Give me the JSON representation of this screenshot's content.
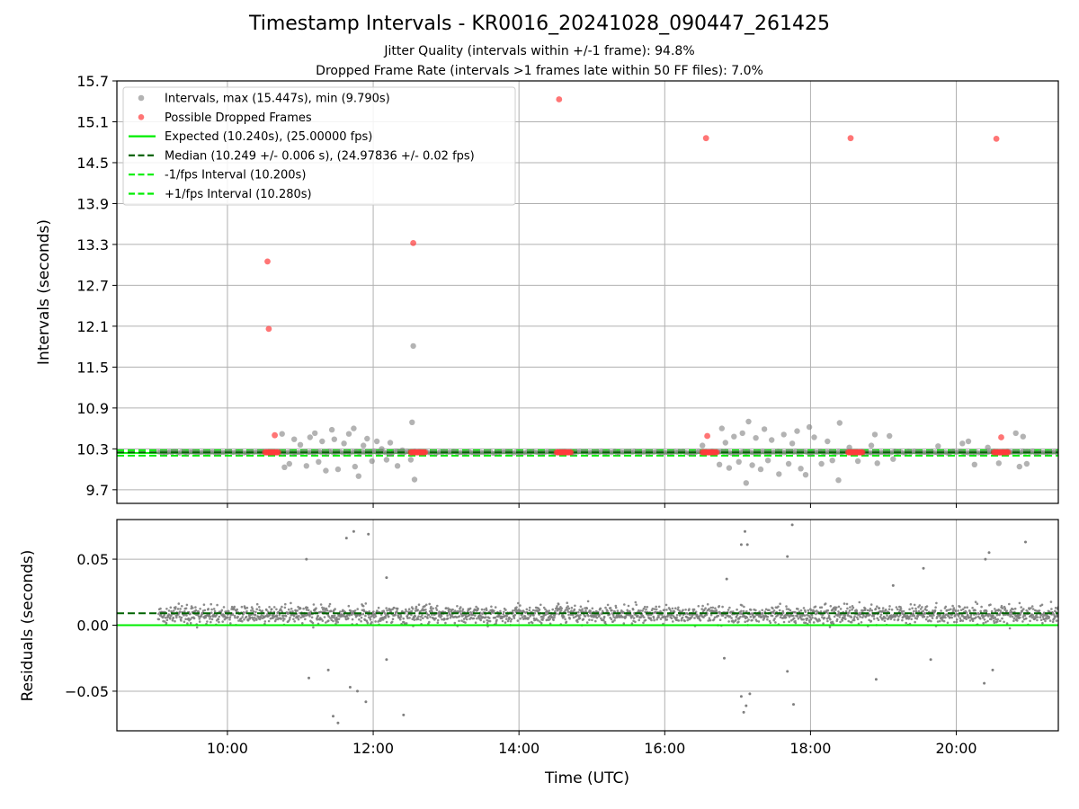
{
  "title": "Timestamp Intervals - KR0016_20241028_090447_261425",
  "subtitles": [
    "Jitter Quality (intervals within +/-1 frame): 94.8%",
    "Dropped Frame Rate (intervals >1 frames late within 50 FF files): 7.0%"
  ],
  "colors": {
    "interval_points": "#808080",
    "dropped_points": "#ff3b3b",
    "expected_line": "#00ee00",
    "median_line": "#006400",
    "grid": "#b0b0b0"
  },
  "chart_data": [
    {
      "type": "scatter",
      "xlabel": "",
      "ylabel": "Intervals (seconds)",
      "xlim": [
        "08:29",
        "21:24"
      ],
      "ylim": [
        9.5,
        15.7
      ],
      "yticks": [
        "9.7",
        "10.3",
        "10.9",
        "11.5",
        "12.1",
        "12.7",
        "13.3",
        "13.9",
        "14.5",
        "15.1",
        "15.7"
      ],
      "grid": true,
      "legend_position": "top-left",
      "legend": [
        "Intervals, max (15.447s), min (9.790s)",
        "Possible Dropped Frames",
        "Expected (10.240s), (25.00000 fps)",
        "Median (10.249 +/- 0.006 s), (24.97836 +/- 0.02 fps)",
        "-1/fps Interval (10.200s)",
        "+1/fps Interval (10.280s)"
      ],
      "reference_lines": {
        "expected": 10.24,
        "median": 10.249,
        "minus_one_fps": 10.2,
        "plus_one_fps": 10.28
      },
      "interval_series": {
        "name": "Intervals, max (15.447s), min (9.790s)",
        "base_value": 10.249,
        "coverage": [
          "09:03",
          "21:24"
        ],
        "outliers": [
          {
            "x": "10:45",
            "y": 10.52
          },
          {
            "x": "10:47",
            "y": 10.03
          },
          {
            "x": "10:51",
            "y": 10.08
          },
          {
            "x": "10:55",
            "y": 10.44
          },
          {
            "x": "11:00",
            "y": 10.36
          },
          {
            "x": "11:05",
            "y": 10.05
          },
          {
            "x": "11:08",
            "y": 10.47
          },
          {
            "x": "11:12",
            "y": 10.53
          },
          {
            "x": "11:15",
            "y": 10.11
          },
          {
            "x": "11:18",
            "y": 10.41
          },
          {
            "x": "11:21",
            "y": 9.98
          },
          {
            "x": "11:26",
            "y": 10.58
          },
          {
            "x": "11:28",
            "y": 10.44
          },
          {
            "x": "11:31",
            "y": 10.0
          },
          {
            "x": "11:36",
            "y": 10.38
          },
          {
            "x": "11:40",
            "y": 10.52
          },
          {
            "x": "11:44",
            "y": 10.6
          },
          {
            "x": "11:45",
            "y": 10.04
          },
          {
            "x": "11:48",
            "y": 9.9
          },
          {
            "x": "11:52",
            "y": 10.35
          },
          {
            "x": "11:55",
            "y": 10.45
          },
          {
            "x": "11:59",
            "y": 10.12
          },
          {
            "x": "12:03",
            "y": 10.41
          },
          {
            "x": "12:07",
            "y": 10.3
          },
          {
            "x": "12:11",
            "y": 10.14
          },
          {
            "x": "12:14",
            "y": 10.39
          },
          {
            "x": "12:20",
            "y": 10.05
          },
          {
            "x": "12:24",
            "y": 10.28
          },
          {
            "x": "12:31",
            "y": 10.14
          },
          {
            "x": "12:32",
            "y": 10.69
          },
          {
            "x": "12:33",
            "y": 11.81
          },
          {
            "x": "12:34",
            "y": 9.85
          },
          {
            "x": "16:31",
            "y": 10.35
          },
          {
            "x": "16:45",
            "y": 10.07
          },
          {
            "x": "16:47",
            "y": 10.6
          },
          {
            "x": "16:50",
            "y": 10.39
          },
          {
            "x": "16:53",
            "y": 10.02
          },
          {
            "x": "16:57",
            "y": 10.48
          },
          {
            "x": "17:01",
            "y": 10.11
          },
          {
            "x": "17:04",
            "y": 10.53
          },
          {
            "x": "17:07",
            "y": 9.8
          },
          {
            "x": "17:09",
            "y": 10.7
          },
          {
            "x": "17:12",
            "y": 10.06
          },
          {
            "x": "17:15",
            "y": 10.46
          },
          {
            "x": "17:19",
            "y": 10.0
          },
          {
            "x": "17:22",
            "y": 10.59
          },
          {
            "x": "17:25",
            "y": 10.13
          },
          {
            "x": "17:28",
            "y": 10.43
          },
          {
            "x": "17:34",
            "y": 9.93
          },
          {
            "x": "17:38",
            "y": 10.51
          },
          {
            "x": "17:42",
            "y": 10.08
          },
          {
            "x": "17:45",
            "y": 10.38
          },
          {
            "x": "17:49",
            "y": 10.56
          },
          {
            "x": "17:52",
            "y": 10.01
          },
          {
            "x": "17:56",
            "y": 9.92
          },
          {
            "x": "17:59",
            "y": 10.62
          },
          {
            "x": "18:03",
            "y": 10.47
          },
          {
            "x": "18:09",
            "y": 10.08
          },
          {
            "x": "18:14",
            "y": 10.41
          },
          {
            "x": "18:18",
            "y": 10.13
          },
          {
            "x": "18:23",
            "y": 9.84
          },
          {
            "x": "18:24",
            "y": 10.68
          },
          {
            "x": "18:32",
            "y": 10.32
          },
          {
            "x": "18:39",
            "y": 10.12
          },
          {
            "x": "18:50",
            "y": 10.35
          },
          {
            "x": "18:53",
            "y": 10.51
          },
          {
            "x": "18:55",
            "y": 10.09
          },
          {
            "x": "19:05",
            "y": 10.49
          },
          {
            "x": "19:08",
            "y": 10.15
          },
          {
            "x": "19:45",
            "y": 10.34
          },
          {
            "x": "20:05",
            "y": 10.38
          },
          {
            "x": "20:10",
            "y": 10.41
          },
          {
            "x": "20:15",
            "y": 10.07
          },
          {
            "x": "20:26",
            "y": 10.32
          },
          {
            "x": "20:35",
            "y": 10.09
          },
          {
            "x": "20:49",
            "y": 10.53
          },
          {
            "x": "20:52",
            "y": 10.04
          },
          {
            "x": "20:55",
            "y": 10.48
          },
          {
            "x": "20:58",
            "y": 10.08
          }
        ]
      },
      "dropped_series": {
        "name": "Possible Dropped Frames",
        "points": [
          {
            "x": "10:33",
            "y": 13.05
          },
          {
            "x": "10:34",
            "y": 12.06
          },
          {
            "x": "10:39",
            "y": 10.5
          },
          {
            "x": "12:33",
            "y": 13.32
          },
          {
            "x": "14:33",
            "y": 15.43
          },
          {
            "x": "16:34",
            "y": 14.86
          },
          {
            "x": "16:35",
            "y": 10.49
          },
          {
            "x": "18:33",
            "y": 14.86
          },
          {
            "x": "20:33",
            "y": 14.85
          },
          {
            "x": "20:37",
            "y": 10.47
          }
        ],
        "clusters": [
          {
            "from": "10:31",
            "to": "10:42",
            "y": 10.249
          },
          {
            "from": "12:31",
            "to": "12:43",
            "y": 10.249
          },
          {
            "from": "14:31",
            "to": "14:43",
            "y": 10.249
          },
          {
            "from": "16:31",
            "to": "16:43",
            "y": 10.249
          },
          {
            "from": "18:31",
            "to": "18:43",
            "y": 10.249
          },
          {
            "from": "20:31",
            "to": "20:43",
            "y": 10.249
          }
        ]
      }
    },
    {
      "type": "scatter",
      "xlabel": "Time (UTC)",
      "ylabel": "Residuals (seconds)",
      "xlim": [
        "08:29",
        "21:24"
      ],
      "ylim": [
        -0.08,
        0.08
      ],
      "xticks": [
        "10:00",
        "12:00",
        "14:00",
        "16:00",
        "18:00",
        "20:00"
      ],
      "yticks": [
        "0.05",
        "0.00",
        "−0.05"
      ],
      "ytick_values": [
        0.05,
        0.0,
        -0.05
      ],
      "grid": true,
      "reference_lines": {
        "expected_residual": 0.0,
        "median_residual": 0.009
      },
      "residual_series": {
        "center": 0.008,
        "coverage": [
          "09:03",
          "21:24"
        ],
        "outliers": [
          {
            "x": "11:05",
            "y": 0.05
          },
          {
            "x": "11:07",
            "y": -0.04
          },
          {
            "x": "11:23",
            "y": -0.034
          },
          {
            "x": "11:27",
            "y": -0.069
          },
          {
            "x": "11:31",
            "y": -0.074
          },
          {
            "x": "11:38",
            "y": 0.066
          },
          {
            "x": "11:41",
            "y": -0.047
          },
          {
            "x": "11:44",
            "y": 0.071
          },
          {
            "x": "11:47",
            "y": -0.05
          },
          {
            "x": "11:54",
            "y": -0.058
          },
          {
            "x": "11:56",
            "y": 0.069
          },
          {
            "x": "12:11",
            "y": 0.036
          },
          {
            "x": "12:11",
            "y": -0.026
          },
          {
            "x": "12:25",
            "y": -0.068
          },
          {
            "x": "16:51",
            "y": 0.035
          },
          {
            "x": "16:49",
            "y": -0.025
          },
          {
            "x": "17:03",
            "y": 0.061
          },
          {
            "x": "17:06",
            "y": 0.071
          },
          {
            "x": "17:08",
            "y": 0.061
          },
          {
            "x": "17:03",
            "y": -0.054
          },
          {
            "x": "17:05",
            "y": -0.066
          },
          {
            "x": "17:07",
            "y": -0.061
          },
          {
            "x": "17:10",
            "y": -0.052
          },
          {
            "x": "17:41",
            "y": 0.052
          },
          {
            "x": "17:41",
            "y": -0.035
          },
          {
            "x": "17:45",
            "y": 0.076
          },
          {
            "x": "17:46",
            "y": -0.06
          },
          {
            "x": "18:54",
            "y": -0.041
          },
          {
            "x": "19:08",
            "y": 0.03
          },
          {
            "x": "19:33",
            "y": 0.043
          },
          {
            "x": "19:39",
            "y": -0.026
          },
          {
            "x": "20:24",
            "y": 0.05
          },
          {
            "x": "20:27",
            "y": 0.055
          },
          {
            "x": "20:23",
            "y": -0.044
          },
          {
            "x": "20:30",
            "y": -0.034
          },
          {
            "x": "20:57",
            "y": 0.063
          }
        ]
      }
    }
  ]
}
